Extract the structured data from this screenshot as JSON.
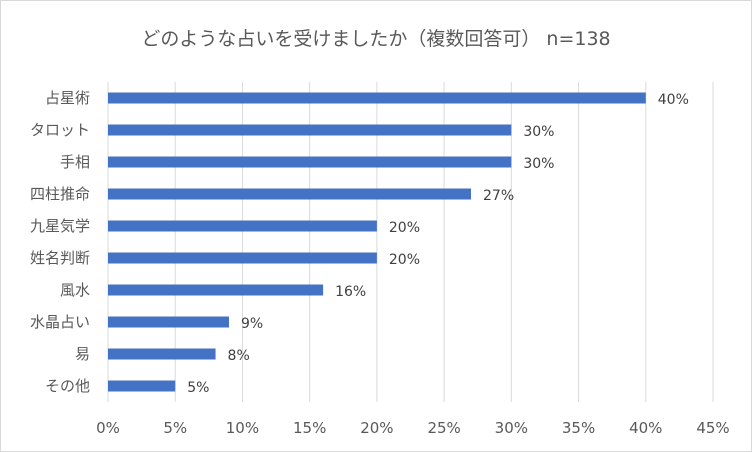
{
  "chart_data": {
    "type": "bar",
    "orientation": "horizontal",
    "title": "どのような占いを受けましたか（複数回答可） n=138",
    "categories": [
      "占星術",
      "タロット",
      "手相",
      "四柱推命",
      "九星気学",
      "姓名判断",
      "風水",
      "水晶占い",
      "易",
      "その他"
    ],
    "values": [
      40,
      30,
      30,
      27,
      20,
      20,
      16,
      9,
      8,
      5
    ],
    "data_labels": [
      "40%",
      "30%",
      "30%",
      "27%",
      "20%",
      "20%",
      "16%",
      "9%",
      "8%",
      "5%"
    ],
    "xlim": [
      0,
      45
    ],
    "xticks": [
      0,
      5,
      10,
      15,
      20,
      25,
      30,
      35,
      40,
      45
    ],
    "xtick_labels": [
      "0%",
      "5%",
      "10%",
      "15%",
      "20%",
      "25%",
      "30%",
      "35%",
      "40%",
      "45%"
    ],
    "xlabel": "",
    "ylabel": "",
    "grid": "vertical",
    "legend": "none",
    "bar_color": "#4472C4",
    "grid_color": "#d9d9d9"
  }
}
